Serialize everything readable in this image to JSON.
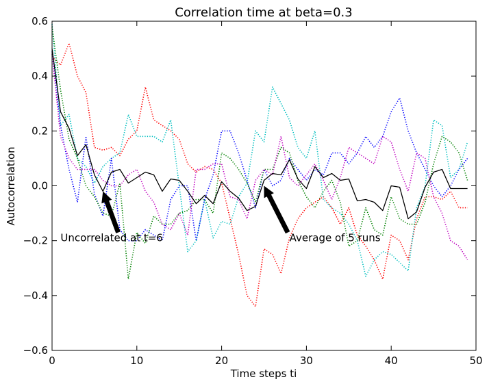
{
  "chart_data": {
    "type": "line",
    "title": "Correlation time at beta=0.3",
    "xlabel": "Time steps ti",
    "ylabel": "Autocorrelation",
    "xlim": [
      0,
      50
    ],
    "ylim": [
      -0.6,
      0.6
    ],
    "x_ticks": [
      0,
      10,
      20,
      30,
      40,
      50
    ],
    "x_tick_labels": [
      "0",
      "10",
      "20",
      "30",
      "40",
      "50"
    ],
    "y_ticks": [
      -0.6,
      -0.4,
      -0.2,
      0.0,
      0.2,
      0.4,
      0.6
    ],
    "y_tick_labels": [
      "−0.6",
      "−0.4",
      "−0.2",
      "0.0",
      "0.2",
      "0.4",
      "0.6"
    ],
    "grid": false,
    "x": [
      0,
      1,
      2,
      3,
      4,
      5,
      6,
      7,
      8,
      9,
      10,
      11,
      12,
      13,
      14,
      15,
      16,
      17,
      18,
      19,
      20,
      21,
      22,
      23,
      24,
      25,
      26,
      27,
      28,
      29,
      30,
      31,
      32,
      33,
      34,
      35,
      36,
      37,
      38,
      39,
      40,
      41,
      42,
      43,
      44,
      45,
      46,
      47,
      48,
      49
    ],
    "series": [
      {
        "color": "#ff0000",
        "style": "dotted",
        "values": [
          0.47,
          0.44,
          0.52,
          0.4,
          0.34,
          0.14,
          0.13,
          0.14,
          0.11,
          0.17,
          0.2,
          0.36,
          0.24,
          0.22,
          0.2,
          0.17,
          0.08,
          0.05,
          0.07,
          0.06,
          0.01,
          -0.12,
          -0.25,
          -0.4,
          -0.44,
          -0.23,
          -0.25,
          -0.32,
          -0.19,
          -0.12,
          -0.08,
          -0.06,
          -0.04,
          -0.08,
          -0.14,
          -0.08,
          -0.18,
          -0.22,
          -0.27,
          -0.34,
          -0.18,
          -0.2,
          -0.27,
          -0.12,
          -0.04,
          -0.04,
          -0.05,
          -0.02,
          -0.08,
          -0.08
        ]
      },
      {
        "color": "#00bfbf",
        "style": "dotted",
        "values": [
          0.59,
          0.22,
          0.26,
          0.1,
          0.07,
          0.01,
          0.07,
          0.1,
          0.12,
          0.26,
          0.18,
          0.18,
          0.18,
          0.16,
          0.24,
          0.0,
          -0.24,
          -0.2,
          -0.05,
          -0.19,
          -0.13,
          -0.14,
          -0.04,
          0.01,
          0.2,
          0.16,
          0.36,
          0.3,
          0.24,
          0.14,
          0.1,
          0.2,
          -0.05,
          -0.08,
          -0.1,
          -0.14,
          -0.2,
          -0.33,
          -0.27,
          -0.24,
          -0.25,
          -0.28,
          -0.31,
          -0.08,
          0.0,
          0.24,
          0.22,
          0.03,
          0.06,
          0.16
        ]
      },
      {
        "color": "#0000ff",
        "style": "dotted",
        "values": [
          0.49,
          0.22,
          0.06,
          -0.06,
          0.18,
          -0.03,
          -0.11,
          0.1,
          -0.16,
          -0.2,
          -0.2,
          -0.16,
          -0.18,
          -0.2,
          -0.05,
          0.0,
          0.0,
          -0.2,
          -0.05,
          0.04,
          0.2,
          0.2,
          0.12,
          0.02,
          -0.08,
          0.06,
          0.0,
          0.02,
          0.1,
          0.06,
          0.02,
          0.06,
          0.04,
          0.12,
          0.12,
          0.08,
          0.12,
          0.18,
          0.14,
          0.18,
          0.27,
          0.32,
          0.2,
          0.12,
          0.06,
          0.0,
          -0.04,
          0.0,
          0.06,
          0.1
        ]
      },
      {
        "color": "#008000",
        "style": "dotted",
        "values": [
          0.58,
          0.35,
          0.17,
          0.1,
          0.0,
          -0.04,
          -0.1,
          -0.11,
          0.01,
          -0.34,
          -0.17,
          -0.21,
          -0.11,
          -0.14,
          -0.14,
          -0.1,
          -0.09,
          -0.05,
          -0.05,
          -0.1,
          0.12,
          0.1,
          0.06,
          0.01,
          -0.06,
          0.06,
          0.06,
          0.14,
          0.12,
          0.02,
          -0.04,
          -0.08,
          -0.02,
          0.02,
          -0.06,
          -0.22,
          -0.2,
          -0.08,
          -0.16,
          -0.18,
          -0.04,
          -0.12,
          -0.14,
          -0.14,
          -0.06,
          0.08,
          0.18,
          0.16,
          0.12,
          0.02
        ]
      },
      {
        "color": "#bf00bf",
        "style": "dotted",
        "values": [
          0.48,
          0.18,
          0.1,
          0.06,
          0.06,
          0.06,
          0.02,
          0.0,
          0.0,
          0.04,
          0.06,
          -0.02,
          -0.06,
          -0.14,
          -0.16,
          -0.1,
          -0.18,
          0.06,
          0.06,
          0.08,
          0.08,
          -0.04,
          -0.05,
          -0.12,
          0.02,
          0.06,
          0.04,
          0.18,
          0.03,
          0.0,
          0.04,
          0.08,
          0.02,
          -0.05,
          0.03,
          0.14,
          0.12,
          0.1,
          0.08,
          0.18,
          0.16,
          0.06,
          -0.02,
          0.12,
          0.1,
          -0.04,
          -0.1,
          -0.2,
          -0.22,
          -0.27
        ]
      },
      {
        "name": "Average of 5 runs",
        "color": "#000000",
        "style": "solid",
        "values": [
          0.5,
          0.27,
          0.21,
          0.11,
          0.15,
          0.04,
          -0.02,
          0.05,
          0.06,
          0.01,
          0.03,
          0.05,
          0.04,
          -0.02,
          0.025,
          0.02,
          -0.02,
          -0.065,
          -0.035,
          -0.065,
          0.015,
          -0.02,
          -0.045,
          -0.09,
          -0.075,
          0.02,
          0.045,
          0.04,
          0.095,
          0.025,
          -0.01,
          0.07,
          0.03,
          0.045,
          0.02,
          0.025,
          -0.055,
          -0.05,
          -0.06,
          -0.09,
          0.0,
          -0.005,
          -0.12,
          -0.095,
          -0.005,
          0.05,
          0.06,
          -0.01,
          -0.01,
          -0.01
        ]
      }
    ],
    "annotations": [
      {
        "text": "Uncorrelated at t=6",
        "text_x": 1,
        "text_y": -0.19,
        "arrow_from": [
          7.8,
          -0.17
        ],
        "arrow_to": [
          6,
          -0.02
        ]
      },
      {
        "text": "Average of 5 runs",
        "text_x": 28,
        "text_y": -0.19,
        "arrow_from": [
          27.8,
          -0.17
        ],
        "arrow_to": [
          25,
          0.0
        ]
      }
    ]
  }
}
